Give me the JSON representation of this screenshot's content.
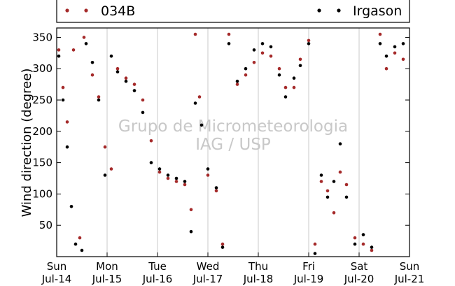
{
  "watermark": {
    "line1": "Grupo de Micrometeorologia",
    "line2": "IAG / USP"
  },
  "colors": {
    "series_034B": "#a52a2a",
    "series_irgason": "#000000",
    "watermark": "#c8c8c8",
    "grid": "#c8c8c8"
  },
  "chart_data": {
    "type": "scatter",
    "title": "",
    "xlabel": "",
    "ylabel": "Wind direction (degree)",
    "xlim": [
      "2014-07-14",
      "2014-07-21"
    ],
    "ylim": [
      0,
      365
    ],
    "yticks": [
      50,
      100,
      150,
      200,
      250,
      300,
      350
    ],
    "xticks": [
      {
        "date": "2014-07-14",
        "day": "Sun",
        "label": "Jul-14"
      },
      {
        "date": "2014-07-15",
        "day": "Mon",
        "label": "Jul-15"
      },
      {
        "date": "2014-07-16",
        "day": "Tue",
        "label": "Jul-16"
      },
      {
        "date": "2014-07-17",
        "day": "Wed",
        "label": "Jul-17"
      },
      {
        "date": "2014-07-18",
        "day": "Thu",
        "label": "Jul-18"
      },
      {
        "date": "2014-07-19",
        "day": "Fri",
        "label": "Jul-19"
      },
      {
        "date": "2014-07-20",
        "day": "Sat",
        "label": "Jul-20"
      },
      {
        "date": "2014-07-21",
        "day": "Sun",
        "label": "Jul-21"
      }
    ],
    "grid": "vertical",
    "legend_position": "top",
    "series": [
      {
        "name": "034B",
        "color": "#a52a2a",
        "points": [
          [
            "2014-07-14 01:00",
            330
          ],
          [
            "2014-07-14 03:00",
            270
          ],
          [
            "2014-07-14 05:00",
            215
          ],
          [
            "2014-07-14 08:00",
            330
          ],
          [
            "2014-07-14 11:00",
            30
          ],
          [
            "2014-07-14 13:00",
            350
          ],
          [
            "2014-07-14 17:00",
            290
          ],
          [
            "2014-07-14 20:00",
            255
          ],
          [
            "2014-07-14 23:00",
            175
          ],
          [
            "2014-07-15 02:00",
            140
          ],
          [
            "2014-07-15 05:00",
            300
          ],
          [
            "2014-07-15 09:00",
            285
          ],
          [
            "2014-07-15 13:00",
            275
          ],
          [
            "2014-07-15 17:00",
            250
          ],
          [
            "2014-07-15 21:00",
            185
          ],
          [
            "2014-07-16 01:00",
            135
          ],
          [
            "2014-07-16 05:00",
            125
          ],
          [
            "2014-07-16 09:00",
            120
          ],
          [
            "2014-07-16 13:00",
            115
          ],
          [
            "2014-07-16 16:00",
            75
          ],
          [
            "2014-07-16 18:00",
            355
          ],
          [
            "2014-07-16 20:00",
            255
          ],
          [
            "2014-07-17 00:00",
            130
          ],
          [
            "2014-07-17 04:00",
            105
          ],
          [
            "2014-07-17 07:00",
            20
          ],
          [
            "2014-07-17 10:00",
            355
          ],
          [
            "2014-07-17 14:00",
            275
          ],
          [
            "2014-07-17 18:00",
            290
          ],
          [
            "2014-07-17 22:00",
            310
          ],
          [
            "2014-07-18 02:00",
            325
          ],
          [
            "2014-07-18 06:00",
            320
          ],
          [
            "2014-07-18 10:00",
            300
          ],
          [
            "2014-07-18 13:00",
            270
          ],
          [
            "2014-07-18 17:00",
            270
          ],
          [
            "2014-07-18 20:00",
            315
          ],
          [
            "2014-07-19 00:00",
            345
          ],
          [
            "2014-07-19 03:00",
            20
          ],
          [
            "2014-07-19 06:00",
            120
          ],
          [
            "2014-07-19 09:00",
            105
          ],
          [
            "2014-07-19 12:00",
            70
          ],
          [
            "2014-07-19 15:00",
            135
          ],
          [
            "2014-07-19 18:00",
            115
          ],
          [
            "2014-07-19 22:00",
            30
          ],
          [
            "2014-07-20 02:00",
            20
          ],
          [
            "2014-07-20 06:00",
            10
          ],
          [
            "2014-07-20 10:00",
            355
          ],
          [
            "2014-07-20 13:00",
            300
          ],
          [
            "2014-07-20 17:00",
            325
          ],
          [
            "2014-07-20 21:00",
            315
          ]
        ]
      },
      {
        "name": "Irgason",
        "color": "#000000",
        "points": [
          [
            "2014-07-14 01:00",
            320
          ],
          [
            "2014-07-14 03:00",
            250
          ],
          [
            "2014-07-14 05:00",
            175
          ],
          [
            "2014-07-14 07:00",
            80
          ],
          [
            "2014-07-14 09:00",
            20
          ],
          [
            "2014-07-14 12:00",
            10
          ],
          [
            "2014-07-14 14:00",
            340
          ],
          [
            "2014-07-14 17:00",
            310
          ],
          [
            "2014-07-14 20:00",
            250
          ],
          [
            "2014-07-14 23:00",
            130
          ],
          [
            "2014-07-15 02:00",
            320
          ],
          [
            "2014-07-15 05:00",
            295
          ],
          [
            "2014-07-15 09:00",
            280
          ],
          [
            "2014-07-15 13:00",
            265
          ],
          [
            "2014-07-15 17:00",
            230
          ],
          [
            "2014-07-15 21:00",
            150
          ],
          [
            "2014-07-16 01:00",
            140
          ],
          [
            "2014-07-16 05:00",
            130
          ],
          [
            "2014-07-16 09:00",
            125
          ],
          [
            "2014-07-16 13:00",
            120
          ],
          [
            "2014-07-16 16:00",
            40
          ],
          [
            "2014-07-16 18:00",
            245
          ],
          [
            "2014-07-16 21:00",
            210
          ],
          [
            "2014-07-17 00:00",
            140
          ],
          [
            "2014-07-17 04:00",
            110
          ],
          [
            "2014-07-17 07:00",
            15
          ],
          [
            "2014-07-17 10:00",
            340
          ],
          [
            "2014-07-17 14:00",
            280
          ],
          [
            "2014-07-17 18:00",
            300
          ],
          [
            "2014-07-17 22:00",
            330
          ],
          [
            "2014-07-18 02:00",
            340
          ],
          [
            "2014-07-18 06:00",
            335
          ],
          [
            "2014-07-18 10:00",
            290
          ],
          [
            "2014-07-18 13:00",
            255
          ],
          [
            "2014-07-18 17:00",
            285
          ],
          [
            "2014-07-18 20:00",
            305
          ],
          [
            "2014-07-19 00:00",
            340
          ],
          [
            "2014-07-19 03:00",
            5
          ],
          [
            "2014-07-19 06:00",
            130
          ],
          [
            "2014-07-19 09:00",
            95
          ],
          [
            "2014-07-19 12:00",
            120
          ],
          [
            "2014-07-19 15:00",
            180
          ],
          [
            "2014-07-19 18:00",
            95
          ],
          [
            "2014-07-19 22:00",
            20
          ],
          [
            "2014-07-20 02:00",
            35
          ],
          [
            "2014-07-20 06:00",
            15
          ],
          [
            "2014-07-20 10:00",
            340
          ],
          [
            "2014-07-20 13:00",
            320
          ],
          [
            "2014-07-20 17:00",
            335
          ],
          [
            "2014-07-20 21:00",
            340
          ]
        ]
      }
    ]
  }
}
